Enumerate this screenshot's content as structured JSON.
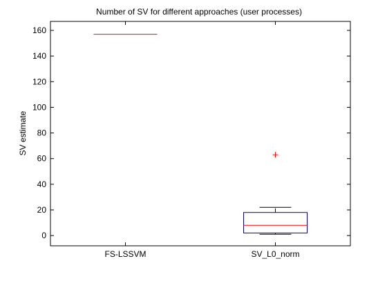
{
  "chart_data": {
    "type": "box",
    "title": "Number of SV for different approaches (user processes)",
    "xlabel": "",
    "ylabel": "SV estimate",
    "categories": [
      "FS-LSSVM",
      "SV_L0_norm"
    ],
    "ylim": [
      -8,
      167
    ],
    "yticks": [
      0,
      20,
      40,
      60,
      80,
      100,
      120,
      140,
      160
    ],
    "grid": false,
    "boxes": [
      {
        "name": "FS-LSSVM",
        "whisker_low": 157,
        "q1": 157,
        "median": 157,
        "q3": 157,
        "whisker_high": 157,
        "outliers": []
      },
      {
        "name": "SV_L0_norm",
        "whisker_low": 1,
        "q1": 2,
        "median": 8,
        "q3": 18,
        "whisker_high": 22,
        "outliers": [
          63
        ]
      }
    ],
    "colors": {
      "box": "#00008B",
      "median": "#FF0000",
      "whisker": "#000000",
      "outlier": "#FF0000",
      "axes": "#000000"
    }
  }
}
